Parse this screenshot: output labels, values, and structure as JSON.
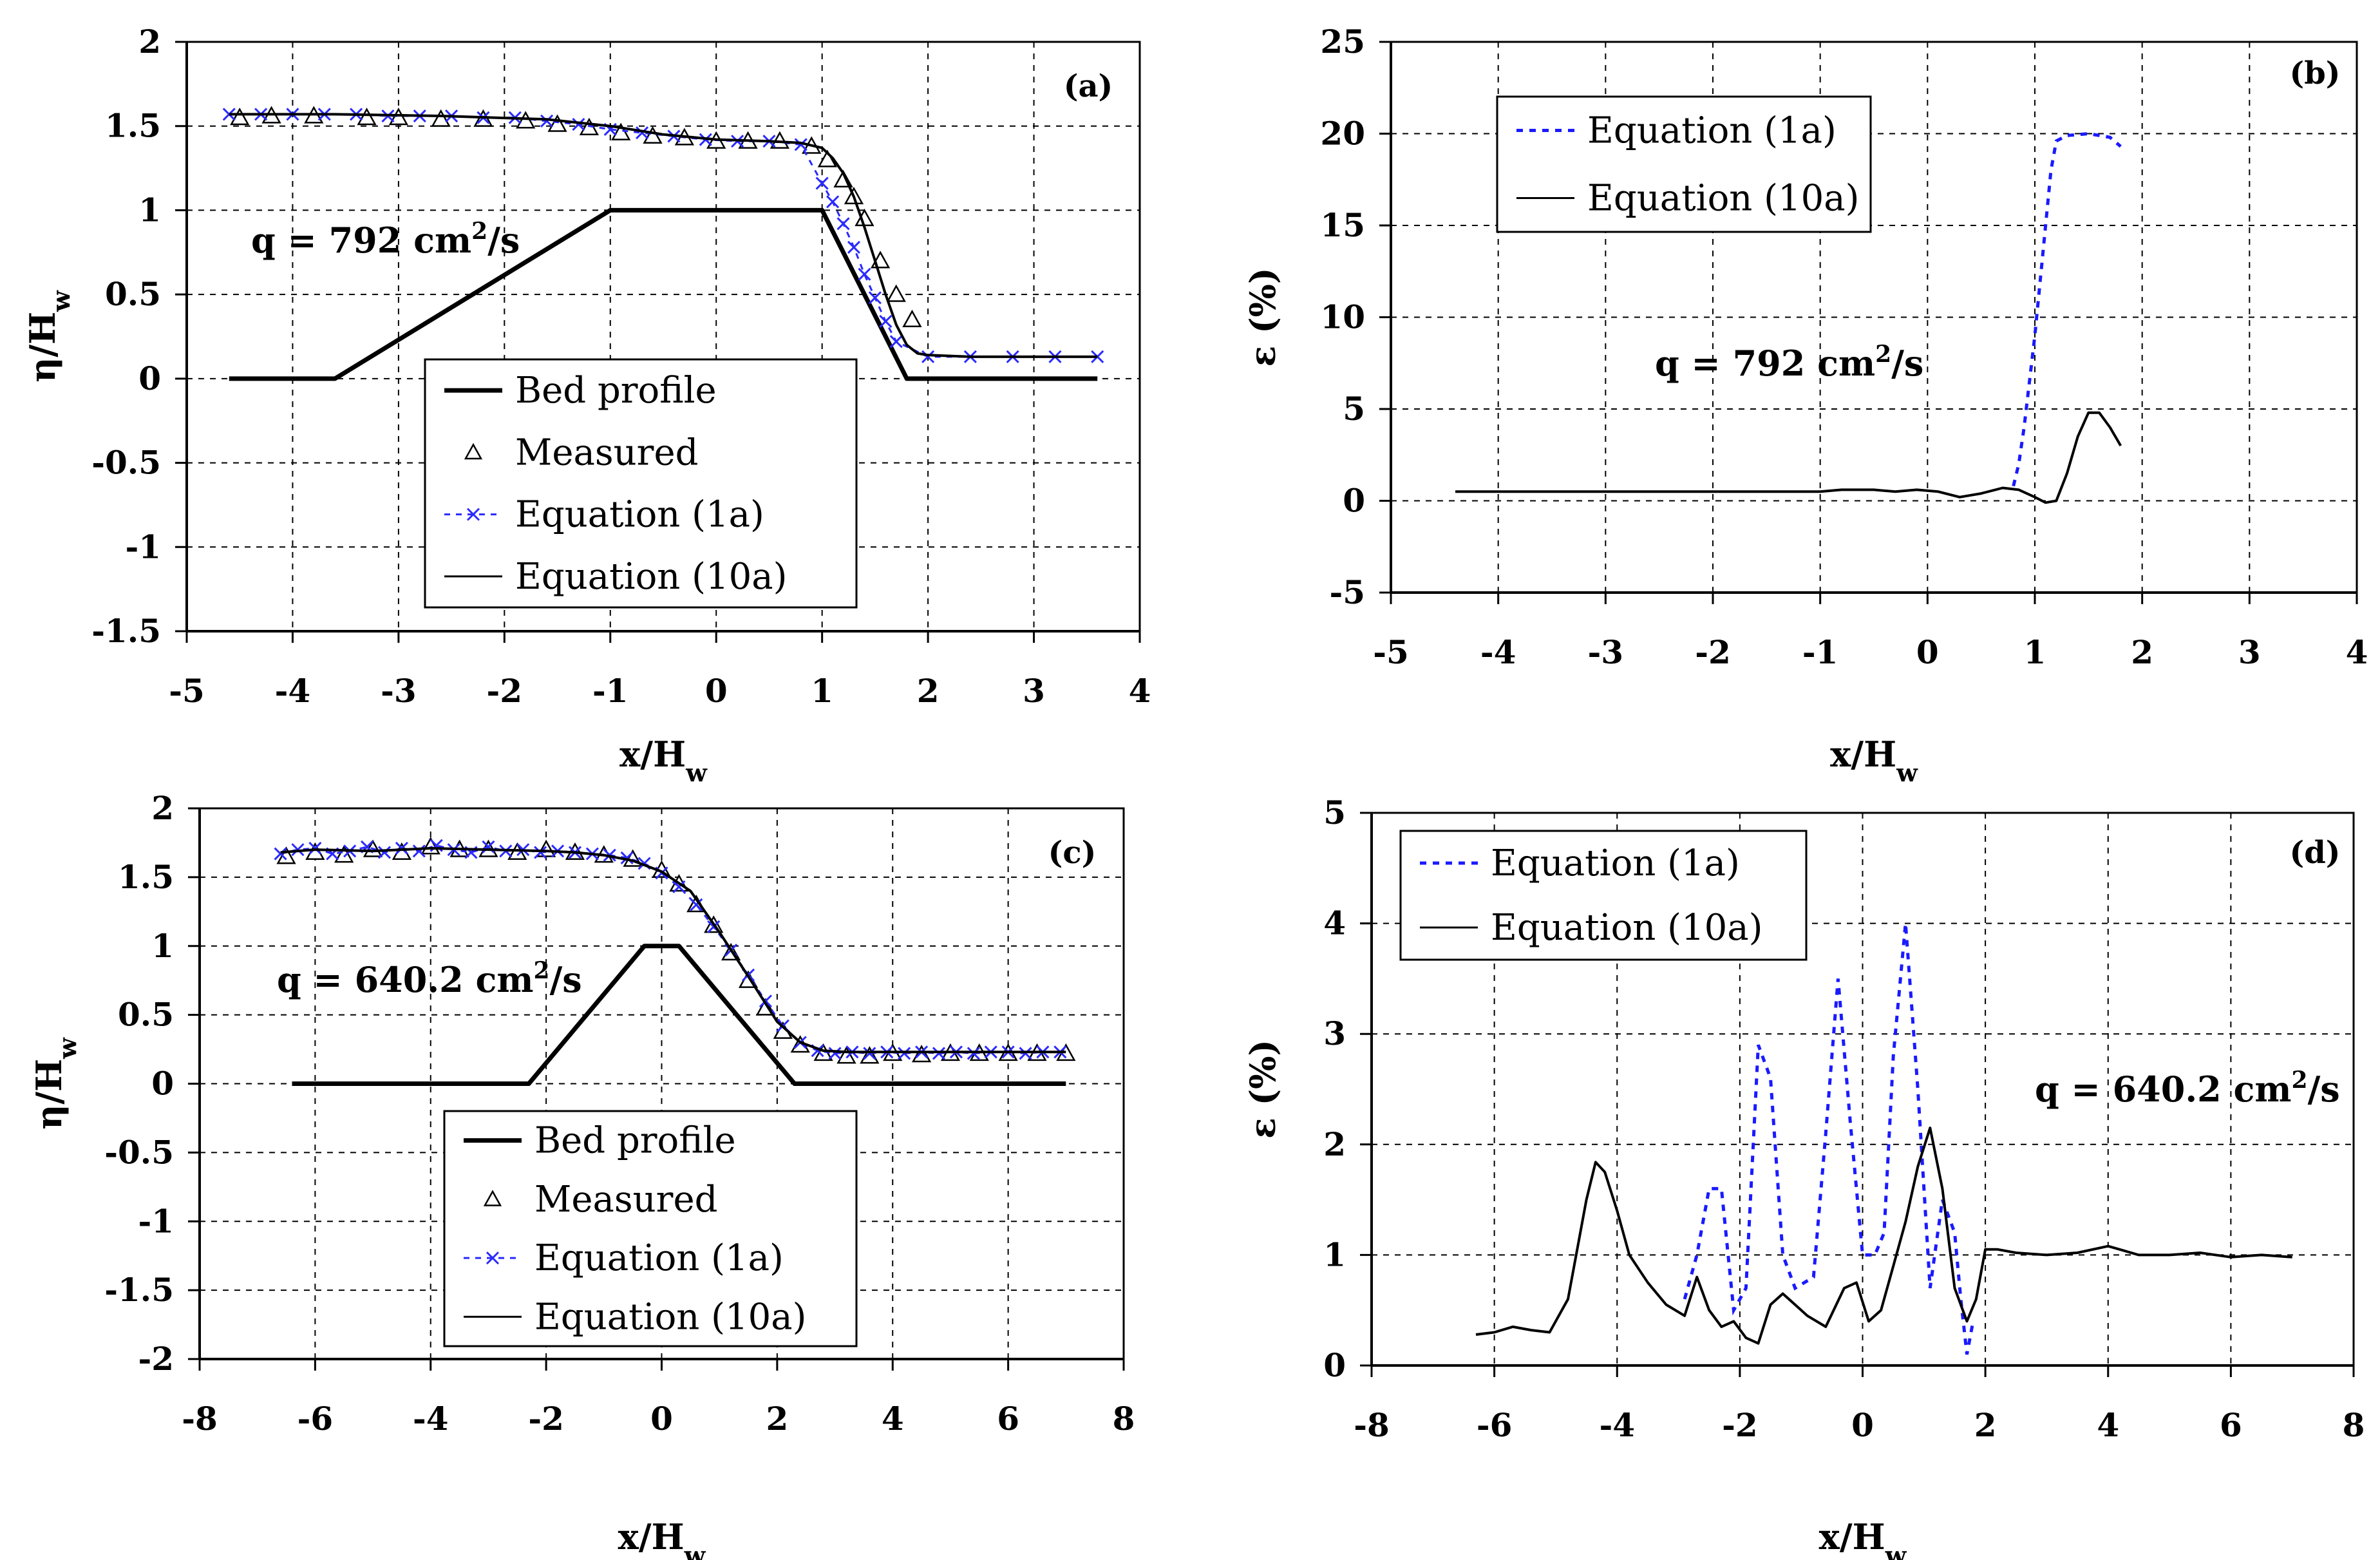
{
  "chart_data": [
    {
      "id": "a",
      "type": "line",
      "tag": "(a)",
      "xlabel": "x/H",
      "xlabel_sub": "w",
      "ylabel": "η/H",
      "ylabel_sub": "w",
      "xlim": [
        -5,
        4
      ],
      "ylim": [
        -1.5,
        2
      ],
      "xticks": [
        -5,
        -4,
        -3,
        -2,
        -1,
        0,
        1,
        2,
        3,
        4
      ],
      "yticks": [
        -1.5,
        -1,
        -0.5,
        0,
        0.5,
        1,
        1.5,
        2
      ],
      "annotation": "q = 792 cm²/s",
      "legend": [
        "Bed profile",
        "Measured",
        "Equation (1a)",
        "Equation (10a)"
      ],
      "series": [
        {
          "name": "Bed profile",
          "style": "thick",
          "x": [
            -4.6,
            -3.6,
            -1.0,
            1.0,
            1.8,
            3.6
          ],
          "y": [
            0,
            0,
            1,
            1,
            0,
            0
          ]
        },
        {
          "name": "Measured",
          "style": "triangle",
          "x": [
            -4.5,
            -4.2,
            -3.8,
            -3.3,
            -3.0,
            -2.6,
            -2.2,
            -1.8,
            -1.5,
            -1.2,
            -0.9,
            -0.6,
            -0.3,
            0.0,
            0.3,
            0.6,
            0.9,
            1.05,
            1.2,
            1.3,
            1.4,
            1.55,
            1.7,
            1.85
          ],
          "y": [
            1.55,
            1.56,
            1.56,
            1.55,
            1.55,
            1.54,
            1.54,
            1.53,
            1.51,
            1.49,
            1.46,
            1.44,
            1.43,
            1.41,
            1.41,
            1.41,
            1.38,
            1.3,
            1.18,
            1.08,
            0.95,
            0.7,
            0.5,
            0.35
          ]
        },
        {
          "name": "Equation (1a)",
          "style": "cross",
          "x": [
            -4.6,
            -4.3,
            -4.0,
            -3.7,
            -3.4,
            -3.1,
            -2.8,
            -2.5,
            -2.2,
            -1.9,
            -1.6,
            -1.3,
            -1.0,
            -0.7,
            -0.4,
            -0.1,
            0.2,
            0.5,
            0.8,
            1.0,
            1.1,
            1.2,
            1.3,
            1.4,
            1.5,
            1.6,
            1.7,
            2.0,
            2.4,
            2.8,
            3.2,
            3.6
          ],
          "y": [
            1.57,
            1.57,
            1.57,
            1.57,
            1.57,
            1.56,
            1.56,
            1.56,
            1.55,
            1.55,
            1.53,
            1.51,
            1.48,
            1.46,
            1.44,
            1.42,
            1.41,
            1.41,
            1.39,
            1.16,
            1.05,
            0.92,
            0.78,
            0.62,
            0.48,
            0.34,
            0.22,
            0.13,
            0.13,
            0.13,
            0.13,
            0.13
          ]
        },
        {
          "name": "Equation (10a)",
          "style": "solid",
          "x": [
            -4.6,
            -3.6,
            -2.6,
            -1.6,
            -1.0,
            -0.5,
            0.0,
            0.5,
            0.8,
            1.0,
            1.1,
            1.2,
            1.3,
            1.4,
            1.5,
            1.6,
            1.7,
            1.8,
            1.9,
            2.0,
            2.4,
            3.0,
            3.6
          ],
          "y": [
            1.57,
            1.57,
            1.56,
            1.54,
            1.5,
            1.45,
            1.42,
            1.41,
            1.4,
            1.37,
            1.31,
            1.22,
            1.08,
            0.9,
            0.7,
            0.5,
            0.32,
            0.2,
            0.15,
            0.14,
            0.13,
            0.13,
            0.13
          ]
        }
      ]
    },
    {
      "id": "b",
      "type": "line",
      "tag": "(b)",
      "xlabel": "x/H",
      "xlabel_sub": "w",
      "ylabel": "ε (%)",
      "ylabel_sub": "",
      "xlim": [
        -5,
        4
      ],
      "ylim": [
        -5,
        25
      ],
      "xticks": [
        -5,
        -4,
        -3,
        -2,
        -1,
        0,
        1,
        2,
        3,
        4
      ],
      "yticks": [
        -5,
        0,
        5,
        10,
        15,
        20,
        25
      ],
      "annotation": "q = 792 cm²/s",
      "legend": [
        "Equation (1a)",
        "Equation (10a)"
      ],
      "series": [
        {
          "name": "Equation (1a)",
          "style": "dotted",
          "x": [
            0.8,
            0.85,
            0.9,
            1.0,
            1.1,
            1.15,
            1.2,
            1.3,
            1.5,
            1.7,
            1.8
          ],
          "y": [
            0.8,
            2.0,
            4.0,
            9.0,
            15.0,
            18.0,
            19.6,
            19.9,
            20.0,
            19.8,
            19.3
          ]
        },
        {
          "name": "Equation (10a)",
          "style": "solid",
          "x": [
            -4.4,
            -3.0,
            -2.0,
            -1.0,
            -0.8,
            -0.5,
            -0.3,
            -0.1,
            0.1,
            0.3,
            0.5,
            0.7,
            0.85,
            1.0,
            1.1,
            1.2,
            1.3,
            1.4,
            1.5,
            1.6,
            1.7,
            1.8
          ],
          "y": [
            0.5,
            0.5,
            0.5,
            0.5,
            0.6,
            0.6,
            0.5,
            0.6,
            0.5,
            0.2,
            0.4,
            0.7,
            0.6,
            0.2,
            -0.1,
            0.0,
            1.5,
            3.5,
            4.8,
            4.8,
            4.0,
            3.0
          ]
        }
      ]
    },
    {
      "id": "c",
      "type": "line",
      "tag": "(c)",
      "xlabel": "x/H",
      "xlabel_sub": "w",
      "ylabel": "η/H",
      "ylabel_sub": "w",
      "xlim": [
        -8,
        8
      ],
      "ylim": [
        -2,
        2
      ],
      "xticks": [
        -8,
        -6,
        -4,
        -2,
        0,
        2,
        4,
        6,
        8
      ],
      "yticks": [
        -2,
        -1.5,
        -1,
        -0.5,
        0,
        0.5,
        1,
        1.5,
        2
      ],
      "annotation": "q = 640.2 cm²/s",
      "legend": [
        "Bed profile",
        "Measured",
        "Equation (1a)",
        "Equation (10a)"
      ],
      "series": [
        {
          "name": "Bed profile",
          "style": "thick",
          "x": [
            -6.4,
            -2.3,
            -0.3,
            0.3,
            2.3,
            7.0
          ],
          "y": [
            0,
            0,
            1,
            1,
            0,
            0
          ]
        },
        {
          "name": "Measured",
          "style": "triangle",
          "x": [
            -6.5,
            -6.0,
            -5.5,
            -5.0,
            -4.5,
            -4.0,
            -3.5,
            -3.0,
            -2.5,
            -2.0,
            -1.5,
            -1.0,
            -0.5,
            0.0,
            0.3,
            0.6,
            0.9,
            1.2,
            1.5,
            1.8,
            2.1,
            2.4,
            2.8,
            3.2,
            3.6,
            4.0,
            4.5,
            5.0,
            5.5,
            6.0,
            6.5,
            7.0
          ],
          "y": [
            1.65,
            1.68,
            1.66,
            1.7,
            1.68,
            1.72,
            1.7,
            1.7,
            1.68,
            1.7,
            1.68,
            1.66,
            1.63,
            1.55,
            1.45,
            1.3,
            1.15,
            0.95,
            0.75,
            0.55,
            0.38,
            0.28,
            0.22,
            0.2,
            0.2,
            0.22,
            0.21,
            0.22,
            0.22,
            0.22,
            0.22,
            0.22
          ]
        },
        {
          "name": "Equation (1a)",
          "style": "cross",
          "x": [
            -6.6,
            -6.3,
            -6.0,
            -5.7,
            -5.4,
            -5.1,
            -4.8,
            -4.5,
            -4.2,
            -3.9,
            -3.6,
            -3.3,
            -3.0,
            -2.7,
            -2.4,
            -2.1,
            -1.8,
            -1.5,
            -1.2,
            -0.9,
            -0.6,
            -0.3,
            0.0,
            0.3,
            0.6,
            0.9,
            1.2,
            1.5,
            1.8,
            2.1,
            2.4,
            2.7,
            3.0,
            3.3,
            3.6,
            3.9,
            4.2,
            4.5,
            4.8,
            5.1,
            5.4,
            5.7,
            6.0,
            6.3,
            6.6,
            6.9
          ],
          "y": [
            1.67,
            1.7,
            1.71,
            1.67,
            1.69,
            1.72,
            1.68,
            1.71,
            1.69,
            1.73,
            1.7,
            1.68,
            1.72,
            1.69,
            1.7,
            1.68,
            1.69,
            1.68,
            1.67,
            1.66,
            1.64,
            1.6,
            1.53,
            1.43,
            1.3,
            1.14,
            0.97,
            0.79,
            0.6,
            0.42,
            0.3,
            0.24,
            0.22,
            0.23,
            0.22,
            0.23,
            0.22,
            0.23,
            0.22,
            0.23,
            0.22,
            0.23,
            0.23,
            0.22,
            0.23,
            0.23
          ]
        },
        {
          "name": "Equation (10a)",
          "style": "solid",
          "x": [
            -6.6,
            -6.0,
            -5.0,
            -4.0,
            -3.0,
            -2.0,
            -1.5,
            -1.0,
            -0.5,
            0.0,
            0.5,
            1.0,
            1.5,
            2.0,
            2.4,
            2.8,
            3.2,
            4.0,
            5.0,
            6.0,
            7.0
          ],
          "y": [
            1.68,
            1.7,
            1.69,
            1.71,
            1.7,
            1.69,
            1.68,
            1.66,
            1.62,
            1.54,
            1.4,
            1.1,
            0.78,
            0.45,
            0.3,
            0.24,
            0.23,
            0.23,
            0.23,
            0.23,
            0.23
          ]
        }
      ]
    },
    {
      "id": "d",
      "type": "line",
      "tag": "(d)",
      "xlabel": "x/H",
      "xlabel_sub": "w",
      "ylabel": "ε (%)",
      "ylabel_sub": "",
      "xlim": [
        -8,
        8
      ],
      "ylim": [
        0,
        5
      ],
      "xticks": [
        -8,
        -6,
        -4,
        -2,
        0,
        2,
        4,
        6,
        8
      ],
      "yticks": [
        0,
        1,
        2,
        3,
        4,
        5
      ],
      "annotation": "q = 640.2 cm²/s",
      "legend": [
        "Equation (1a)",
        "Equation (10a)"
      ],
      "series": [
        {
          "name": "Equation (1a)",
          "style": "dotted",
          "x": [
            -2.9,
            -2.7,
            -2.5,
            -2.3,
            -2.1,
            -1.9,
            -1.7,
            -1.5,
            -1.3,
            -1.1,
            -0.8,
            -0.6,
            -0.4,
            -0.2,
            0.0,
            0.2,
            0.35,
            0.5,
            0.7,
            0.9,
            1.1,
            1.3,
            1.5,
            1.6,
            1.7,
            1.8
          ],
          "y": [
            0.6,
            1.0,
            1.6,
            1.6,
            0.5,
            0.7,
            2.9,
            2.6,
            1.0,
            0.7,
            0.8,
            2.1,
            3.5,
            2.2,
            1.0,
            1.0,
            1.2,
            2.8,
            4.0,
            2.5,
            0.7,
            1.5,
            1.2,
            0.6,
            0.1,
            0.4
          ]
        },
        {
          "name": "Equation (10a)",
          "style": "solid",
          "x": [
            -6.3,
            -6.0,
            -5.7,
            -5.4,
            -5.1,
            -4.8,
            -4.5,
            -4.35,
            -4.2,
            -4.0,
            -3.8,
            -3.5,
            -3.2,
            -2.9,
            -2.7,
            -2.5,
            -2.3,
            -2.1,
            -1.9,
            -1.7,
            -1.5,
            -1.3,
            -1.1,
            -0.9,
            -0.6,
            -0.3,
            -0.1,
            0.1,
            0.3,
            0.5,
            0.7,
            0.9,
            1.1,
            1.3,
            1.5,
            1.7,
            1.85,
            2.0,
            2.2,
            2.5,
            3.0,
            3.5,
            4.0,
            4.5,
            5.0,
            5.5,
            6.0,
            6.5,
            7.0
          ],
          "y": [
            0.28,
            0.3,
            0.35,
            0.32,
            0.3,
            0.6,
            1.5,
            1.84,
            1.75,
            1.4,
            1.0,
            0.75,
            0.55,
            0.45,
            0.8,
            0.5,
            0.35,
            0.4,
            0.25,
            0.2,
            0.55,
            0.65,
            0.55,
            0.45,
            0.35,
            0.7,
            0.75,
            0.4,
            0.5,
            0.9,
            1.3,
            1.8,
            2.15,
            1.6,
            0.7,
            0.4,
            0.6,
            1.05,
            1.05,
            1.02,
            1.0,
            1.02,
            1.08,
            1.0,
            1.0,
            1.02,
            0.98,
            1.0,
            0.98
          ]
        }
      ]
    }
  ]
}
